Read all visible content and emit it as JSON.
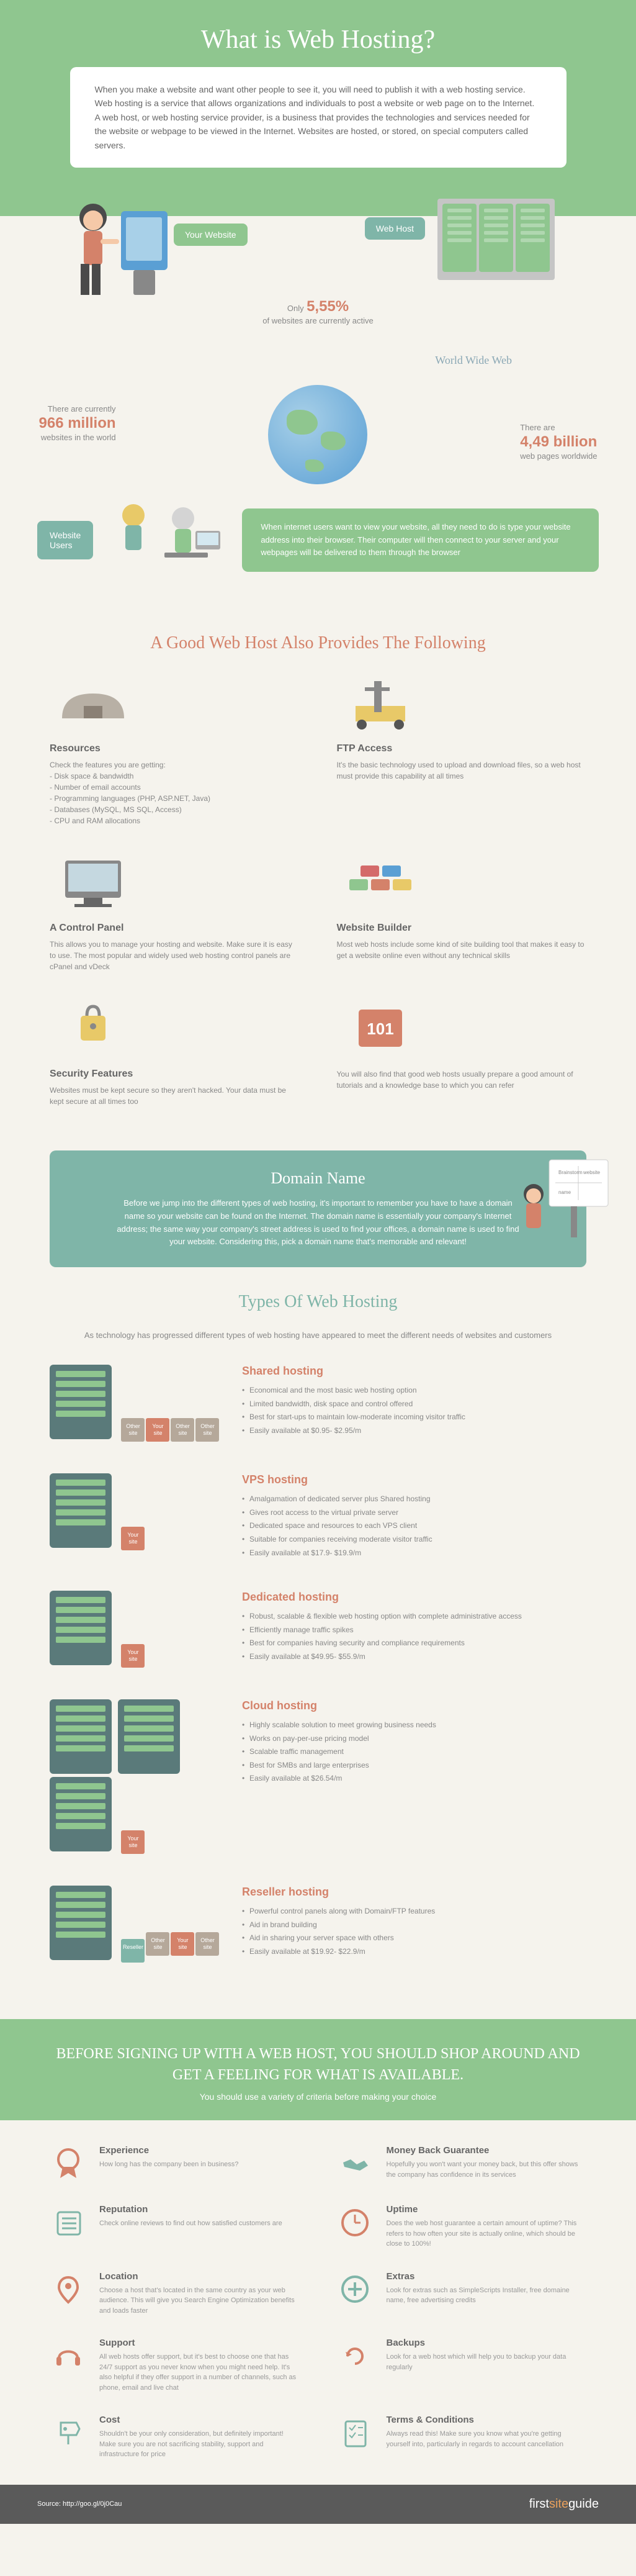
{
  "header": {
    "title": "What is Web Hosting?",
    "intro": "When you make a website and want other people to see it, you will need to publish it with a web hosting service. Web hosting is a service that allows organizations and individuals to post a website or web page on to the Internet. A web host, or web hosting service provider, is a business that provides the technologies and services needed for the website or webpage to be viewed in the Internet. Websites are hosted, or stored, on special computers called servers.",
    "your_website_label": "Your Website",
    "web_host_label": "Web Host",
    "stat1_prefix": "Only",
    "stat1_value": "5,55%",
    "stat1_suffix": "of websites are currently active"
  },
  "globe": {
    "www_label": "World Wide Web",
    "stat_left_prefix": "There are currently",
    "stat_left_value": "966 million",
    "stat_left_suffix": "websites in the world",
    "stat_right_prefix": "There are",
    "stat_right_value": "4,49 billion",
    "stat_right_suffix": "web pages worldwide",
    "users_label": "Website Users",
    "info_text": "When internet users want to view your website, all they need to do is type your website address into their browser. Their computer will then connect to your server and your webpages will be delivered to them through the browser"
  },
  "features": {
    "title": "A Good Web Host Also Provides The Following",
    "items": [
      {
        "title": "Resources",
        "desc": "Check the features you are getting:\n- Disk space & bandwidth\n- Number of email accounts\n- Programming languages (PHP, ASP.NET, Java)\n- Databases (MySQL, MS SQL, Access)\n- CPU and RAM allocations"
      },
      {
        "title": "FTP Access",
        "desc": "It's the basic technology used to upload and download files, so a web host must provide this capability at all times"
      },
      {
        "title": "A Control Panel",
        "desc": "This allows you to manage your hosting and website. Make sure it is easy to use. The most popular and widely used web hosting control panels are cPanel and vDeck"
      },
      {
        "title": "Website Builder",
        "desc": "Most web hosts include some kind of site building tool that makes it easy to get a website online even without any technical skills"
      },
      {
        "title": "Security Features",
        "desc": "Websites must be kept secure so they aren't hacked. Your data must be kept secure at all times too"
      },
      {
        "title": "",
        "desc": "You will also find that good web hosts usually prepare a good amount of tutorials and a knowledge base to which you can refer"
      }
    ]
  },
  "domain": {
    "title": "Domain Name",
    "text": "Before we jump into the different types of web hosting, it's important to remember you have to have a domain name so your website can be found on the Internet. The domain name is essentially your company's Internet address; the same way your company's street address is used to find your offices, a domain name is used to find your website. Considering this, pick a domain name that's memorable and relevant!"
  },
  "hosting": {
    "title": "Types Of Web Hosting",
    "intro": "As technology has progressed different types of web hosting have appeared to meet the different needs of websites and customers",
    "types": [
      {
        "name": "Shared hosting",
        "color": "#d4826a",
        "bullets": [
          "Economical and the most basic web hosting option",
          "Limited bandwidth, disk space and control offered",
          "Best for start-ups to maintain low-moderate incoming visitor traffic",
          "Easily available at $0.95- $2.95/m"
        ],
        "sites": [
          "Other site",
          "Your site",
          "Other site",
          "Other site"
        ]
      },
      {
        "name": "VPS hosting",
        "color": "#d4826a",
        "bullets": [
          "Amalgamation of dedicated server plus Shared hosting",
          "Gives root access to the virtual private server",
          "Dedicated space and resources to each VPS client",
          "Suitable for companies receiving moderate visitor traffic",
          "Easily available at $17.9- $19.9/m"
        ],
        "sites": [
          "Your site"
        ]
      },
      {
        "name": "Dedicated hosting",
        "color": "#d4826a",
        "bullets": [
          "Robust, scalable & flexible web hosting option with complete administrative access",
          "Efficiently manage traffic spikes",
          "Best for companies having security and compliance requirements",
          "Easily available at $49.95- $55.9/m"
        ],
        "sites": [
          "Your site"
        ]
      },
      {
        "name": "Cloud hosting",
        "color": "#d4826a",
        "bullets": [
          "Highly scalable solution to meet growing business needs",
          "Works on pay-per-use pricing model",
          "Scalable traffic management",
          "Best for SMBs and large enterprises",
          "Easily available at $26.54/m"
        ],
        "sites": [
          "Your site"
        ]
      },
      {
        "name": "Reseller hosting",
        "color": "#d4826a",
        "bullets": [
          "Powerful control panels along with Domain/FTP features",
          "Aid in brand building",
          "Aid in sharing your server space with others",
          "Easily available at $19.92- $22.9/m"
        ],
        "sites": [
          "Other site",
          "Your site",
          "Other site"
        ],
        "reseller_label": "Reseller"
      }
    ]
  },
  "criteria": {
    "heading": "BEFORE SIGNING UP WITH A WEB HOST, YOU SHOULD SHOP AROUND AND GET A FEELING FOR WHAT IS AVAILABLE.",
    "sub": "You should use a variety of criteria before making your choice",
    "items": [
      {
        "icon": "ribbon",
        "color": "#d4826a",
        "title": "Experience",
        "desc": "How long has the company been in business?"
      },
      {
        "icon": "handshake",
        "color": "#7fb5a8",
        "title": "Money Back Guarantee",
        "desc": "Hopefully you won't want your money back, but this offer shows the company has confidence in its services"
      },
      {
        "icon": "list",
        "color": "#7fb5a8",
        "title": "Reputation",
        "desc": "Check online reviews to find out how satisfied customers are"
      },
      {
        "icon": "clock",
        "color": "#d4826a",
        "title": "Uptime",
        "desc": "Does the web host guarantee a certain amount of uptime? This refers to how often your site is actually online, which should be close to 100%!"
      },
      {
        "icon": "pin",
        "color": "#d4826a",
        "title": "Location",
        "desc": "Choose a host that's located in the same country as your web audience. This will give you Search Engine Optimization benefits and loads faster"
      },
      {
        "icon": "plus",
        "color": "#7fb5a8",
        "title": "Extras",
        "desc": "Look for extras such as SimpleScripts Installer, free domaine name, free advertising credits"
      },
      {
        "icon": "headset",
        "color": "#d4826a",
        "title": "Support",
        "desc": "All web hosts offer support, but it's best to choose one that has 24/7 support as you never know when you might need help. It's also helpful if they offer support in a number of channels, such as phone, email and live chat"
      },
      {
        "icon": "refresh",
        "color": "#d4826a",
        "title": "Backups",
        "desc": "Look for a web host which will help you to backup your data regularly"
      },
      {
        "icon": "price",
        "color": "#7fb5a8",
        "title": "Cost",
        "desc": "Shouldn't be your only consideration, but definitely important! Make sure you are not sacrificing stability, support and infrastructure for price"
      },
      {
        "icon": "checklist",
        "color": "#7fb5a8",
        "title": "Terms & Conditions",
        "desc": "Always read this! Make sure you know what you're getting yourself into, particularly in regards to account cancellation"
      }
    ]
  },
  "footer": {
    "source": "Source: http://goo.gl/0j0Cau",
    "logo_first": "first",
    "logo_site": "site",
    "logo_guide": "guide"
  },
  "colors": {
    "green": "#8fc68f",
    "teal": "#7fb5a8",
    "orange": "#d4826a",
    "cream": "#f5f3ed",
    "gray": "#888888"
  }
}
